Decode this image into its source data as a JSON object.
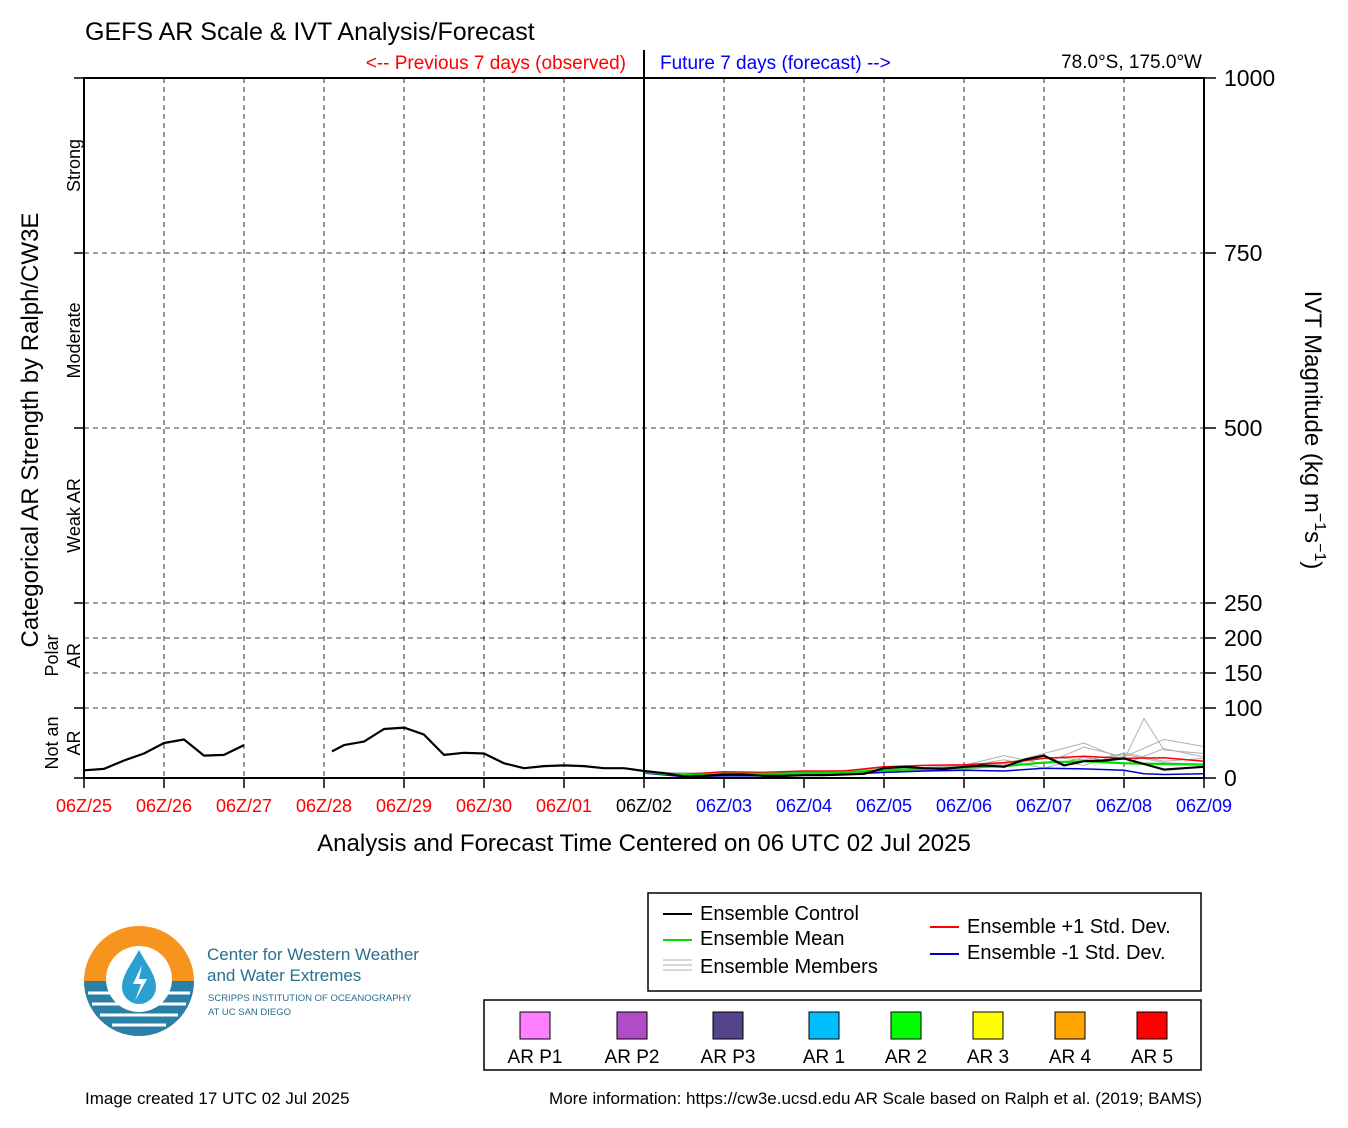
{
  "chart_data": {
    "type": "line",
    "title": "GEFS AR Scale & IVT Analysis/Forecast",
    "location": "78.0°S, 175.0°W",
    "previous_label": "<-- Previous 7 days (observed)",
    "future_label": "Future 7 days (forecast) -->",
    "xlabel": "Analysis and Forecast Time Centered on 06 UTC 02 Jul 2025",
    "ylabel_left": "Categorical AR Strength by Ralph/CW3E",
    "ylabel_right": "IVT Magnitude (kg m",
    "ylabel_right_sup1": "−1",
    "ylabel_right_mid": "s",
    "ylabel_right_sup2": "−1",
    "ylabel_right_end": ")",
    "x_ticks": [
      "06Z/25",
      "06Z/26",
      "06Z/27",
      "06Z/28",
      "06Z/29",
      "06Z/30",
      "06Z/01",
      "06Z/02",
      "06Z/03",
      "06Z/04",
      "06Z/05",
      "06Z/06",
      "06Z/07",
      "06Z/08",
      "06Z/09"
    ],
    "x_tick_colors": [
      "#ff0000",
      "#ff0000",
      "#ff0000",
      "#ff0000",
      "#ff0000",
      "#ff0000",
      "#ff0000",
      "#000000",
      "#0000ff",
      "#0000ff",
      "#0000ff",
      "#0000ff",
      "#0000ff",
      "#0000ff",
      "#0000ff"
    ],
    "xlim": [
      -7,
      7
    ],
    "ylim": [
      0,
      1000
    ],
    "y_ticks": [
      0,
      100,
      150,
      200,
      250,
      500,
      750,
      1000
    ],
    "hgrid": [
      100,
      150,
      200,
      250,
      500,
      750
    ],
    "categories": [
      {
        "label": "Strong",
        "y": 875
      },
      {
        "label": "Moderate",
        "y": 625
      },
      {
        "label": "Weak AR",
        "y": 375
      },
      {
        "label": "Polar AR",
        "y": 175,
        "lines": [
          "Polar",
          "AR"
        ]
      },
      {
        "label": "Not an AR",
        "y": 50,
        "lines": [
          "Not an",
          "AR"
        ]
      }
    ],
    "series": [
      {
        "name": "Ensemble Control",
        "color": "#000000",
        "width": 2.2,
        "segments": [
          [
            [
              -7,
              11
            ],
            [
              -6.75,
              13
            ],
            [
              -6.5,
              25
            ],
            [
              -6.25,
              35
            ],
            [
              -6,
              50
            ],
            [
              -5.75,
              55
            ],
            [
              -5.5,
              32
            ],
            [
              -5.25,
              33
            ],
            [
              -5,
              47
            ]
          ],
          [
            [
              -3.9,
              38
            ],
            [
              -3.75,
              47
            ],
            [
              -3.5,
              52
            ],
            [
              -3.25,
              70
            ],
            [
              -3,
              72
            ],
            [
              -2.75,
              62
            ],
            [
              -2.5,
              33
            ],
            [
              -2.25,
              36
            ],
            [
              -2,
              35
            ],
            [
              -1.75,
              21
            ],
            [
              -1.5,
              14
            ],
            [
              -1.25,
              17
            ],
            [
              -1,
              18
            ],
            [
              -0.75,
              17
            ],
            [
              -0.5,
              14
            ],
            [
              -0.25,
              14
            ],
            [
              0,
              10
            ],
            [
              0.25,
              7
            ],
            [
              0.5,
              2
            ],
            [
              0.75,
              3
            ],
            [
              1,
              5
            ],
            [
              1.25,
              5
            ],
            [
              1.5,
              3
            ],
            [
              1.75,
              3
            ],
            [
              2,
              4
            ],
            [
              2.25,
              4
            ],
            [
              2.5,
              5
            ],
            [
              2.75,
              6
            ],
            [
              3,
              14
            ],
            [
              3.25,
              16
            ],
            [
              3.5,
              14
            ],
            [
              3.75,
              13
            ],
            [
              4,
              16
            ],
            [
              4.25,
              18
            ],
            [
              4.5,
              16
            ],
            [
              4.75,
              26
            ],
            [
              5,
              32
            ],
            [
              5.25,
              18
            ],
            [
              5.5,
              24
            ],
            [
              5.75,
              25
            ],
            [
              6,
              28
            ],
            [
              6.25,
              20
            ],
            [
              6.5,
              12
            ],
            [
              6.75,
              14
            ],
            [
              7,
              16
            ]
          ]
        ]
      },
      {
        "name": "Ensemble Mean",
        "color": "#00dd00",
        "width": 2.2,
        "segments": [
          [
            [
              0,
              8
            ],
            [
              0.5,
              4
            ],
            [
              1,
              6
            ],
            [
              1.5,
              6
            ],
            [
              2,
              7
            ],
            [
              2.5,
              8
            ],
            [
              3,
              11
            ],
            [
              3.5,
              13
            ],
            [
              4,
              15
            ],
            [
              4.5,
              17
            ],
            [
              5,
              22
            ],
            [
              5.5,
              24
            ],
            [
              6,
              21
            ],
            [
              6.5,
              20
            ],
            [
              7,
              19
            ]
          ]
        ]
      },
      {
        "name": "Ensemble +1 Std. Dev.",
        "color": "#ff0000",
        "width": 1.5,
        "segments": [
          [
            [
              0,
              9
            ],
            [
              0.5,
              5
            ],
            [
              1,
              9
            ],
            [
              1.5,
              8
            ],
            [
              2,
              10
            ],
            [
              2.5,
              10
            ],
            [
              3,
              16
            ],
            [
              3.5,
              18
            ],
            [
              4,
              19
            ],
            [
              4.5,
              22
            ],
            [
              5,
              28
            ],
            [
              5.5,
              31
            ],
            [
              6,
              28
            ],
            [
              6.5,
              29
            ],
            [
              7,
              24
            ]
          ]
        ]
      },
      {
        "name": "Ensemble -1 Std. Dev.",
        "color": "#0000cc",
        "width": 1.5,
        "segments": [
          [
            [
              0,
              7
            ],
            [
              0.5,
              2
            ],
            [
              1,
              3
            ],
            [
              1.5,
              3
            ],
            [
              2,
              4
            ],
            [
              2.5,
              5
            ],
            [
              3,
              8
            ],
            [
              3.5,
              10
            ],
            [
              4,
              11
            ],
            [
              4.5,
              10
            ],
            [
              5,
              14
            ],
            [
              5.5,
              13
            ],
            [
              6,
              11
            ],
            [
              6.25,
              6
            ],
            [
              6.5,
              5
            ],
            [
              7,
              6
            ]
          ]
        ]
      }
    ],
    "members": [
      [
        [
          0,
          8
        ],
        [
          1,
          6
        ],
        [
          2,
          5
        ],
        [
          3,
          10
        ],
        [
          4,
          14
        ],
        [
          4.5,
          20
        ],
        [
          5,
          35
        ],
        [
          5.5,
          50
        ],
        [
          6,
          26
        ],
        [
          6.25,
          85
        ],
        [
          6.5,
          40
        ],
        [
          7,
          35
        ]
      ],
      [
        [
          0,
          8
        ],
        [
          1,
          7
        ],
        [
          2,
          9
        ],
        [
          3,
          12
        ],
        [
          4,
          18
        ],
        [
          4.5,
          32
        ],
        [
          5,
          20
        ],
        [
          5.5,
          44
        ],
        [
          6,
          30
        ],
        [
          6.5,
          55
        ],
        [
          7,
          45
        ]
      ],
      [
        [
          0,
          9
        ],
        [
          1,
          4
        ],
        [
          2,
          6
        ],
        [
          3,
          9
        ],
        [
          4,
          12
        ],
        [
          4.5,
          18
        ],
        [
          5,
          28
        ],
        [
          5.5,
          18
        ],
        [
          6,
          36
        ],
        [
          6.5,
          24
        ],
        [
          7,
          28
        ]
      ],
      [
        [
          0,
          7
        ],
        [
          1,
          5
        ],
        [
          2,
          8
        ],
        [
          3,
          14
        ],
        [
          4,
          16
        ],
        [
          4.5,
          26
        ],
        [
          5,
          14
        ],
        [
          5.5,
          30
        ],
        [
          6,
          20
        ],
        [
          6.5,
          42
        ],
        [
          7,
          30
        ]
      ],
      [
        [
          0,
          8
        ],
        [
          1,
          6
        ],
        [
          2,
          6
        ],
        [
          3,
          10
        ],
        [
          4,
          13
        ],
        [
          4.5,
          22
        ],
        [
          5,
          30
        ],
        [
          5.5,
          26
        ],
        [
          6,
          34
        ],
        [
          6.5,
          22
        ],
        [
          7,
          20
        ]
      ]
    ],
    "legend": {
      "items_left": [
        "Ensemble Control",
        "Ensemble Mean",
        "Ensemble Members"
      ],
      "colors_left": [
        "#000000",
        "#00dd00",
        "#b0b0b0"
      ],
      "items_right": [
        "Ensemble +1 Std. Dev.",
        "Ensemble -1 Std. Dev."
      ],
      "colors_right": [
        "#ff0000",
        "#0000cc"
      ]
    },
    "ar_scale": [
      {
        "label": "AR P1",
        "color": "#ff80ff"
      },
      {
        "label": "AR P2",
        "color": "#b04cc8"
      },
      {
        "label": "AR P3",
        "color": "#55448a"
      },
      {
        "label": "AR 1",
        "color": "#00bfff"
      },
      {
        "label": "AR 2",
        "color": "#00ff00"
      },
      {
        "label": "AR 3",
        "color": "#ffff00"
      },
      {
        "label": "AR 4",
        "color": "#ffa500"
      },
      {
        "label": "AR 5",
        "color": "#ff0000"
      }
    ]
  },
  "logo": {
    "line1": "Center for Western Weather",
    "line2": "and Water Extremes",
    "line3": "SCRIPPS INSTITUTION OF OCEANOGRAPHY",
    "line4": "AT UC SAN DIEGO"
  },
  "footer": {
    "created": "Image created 17 UTC 02 Jul 2025",
    "info": "More information: https://cw3e.ucsd.edu AR Scale based on Ralph et al. (2019; BAMS)"
  }
}
